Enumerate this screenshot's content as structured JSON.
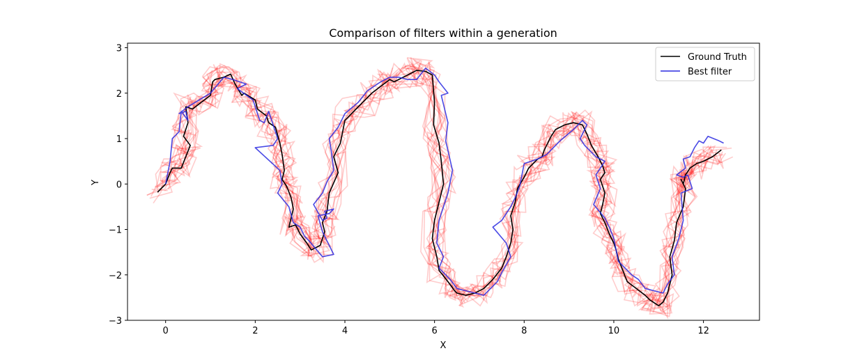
{
  "chart_data": {
    "type": "line",
    "title": "Comparison of filters within a generation",
    "xlabel": "X",
    "ylabel": "Y",
    "xlim": [
      -0.85,
      13.25
    ],
    "ylim": [
      -3.0,
      3.1
    ],
    "xticks": [
      0,
      2,
      4,
      6,
      8,
      10,
      12
    ],
    "yticks": [
      -3,
      -2,
      -1,
      0,
      1,
      2,
      3
    ],
    "xtick_labels": [
      "0",
      "2",
      "4",
      "6",
      "8",
      "10",
      "12"
    ],
    "ytick_labels": [
      "−3",
      "−2",
      "−1",
      "0",
      "1",
      "2",
      "3"
    ],
    "grid": false,
    "legend_position": "top-right",
    "legend": [
      "Ground Truth",
      "Best filter"
    ],
    "series": [
      {
        "name": "Ground Truth",
        "color": "#000000",
        "x": [
          -0.18,
          0.0,
          0.1,
          0.15,
          0.35,
          0.45,
          0.55,
          0.4,
          0.5,
          0.45,
          0.6,
          0.8,
          1.0,
          1.05,
          1.1,
          1.3,
          1.45,
          1.55,
          1.7,
          1.75,
          2.0,
          2.05,
          2.25,
          2.3,
          2.45,
          2.55,
          2.6,
          2.65,
          2.6,
          2.7,
          2.8,
          2.85,
          2.75,
          2.9,
          3.0,
          3.15,
          3.25,
          3.45,
          3.55,
          3.5,
          3.6,
          3.65,
          3.85,
          3.75,
          3.9,
          4.0,
          4.2,
          4.4,
          4.6,
          4.8,
          5.0,
          5.1,
          5.3,
          5.5,
          5.6,
          5.8,
          5.95,
          6.0,
          5.98,
          6.1,
          6.15,
          6.2,
          6.1,
          6.0,
          5.95,
          6.05,
          6.1,
          6.3,
          6.45,
          6.5,
          6.7,
          6.9,
          7.1,
          7.3,
          7.5,
          7.6,
          7.7,
          7.75,
          7.7,
          7.8,
          7.85,
          8.0,
          8.1,
          8.3,
          8.4,
          8.45,
          8.6,
          8.7,
          8.9,
          9.1,
          9.3,
          9.4,
          9.5,
          9.65,
          9.75,
          9.8,
          9.7,
          9.8,
          9.75,
          9.7,
          9.8,
          9.9,
          10.0,
          10.05,
          10.1,
          10.2,
          10.3,
          10.5,
          10.7,
          10.8,
          11.0,
          11.1,
          11.2,
          11.3,
          11.25,
          11.35,
          11.4,
          11.55,
          11.6,
          11.5,
          11.55,
          11.6,
          11.7,
          11.85,
          12.0,
          12.2,
          12.4
        ],
        "y": [
          -0.18,
          0.0,
          0.25,
          0.35,
          0.35,
          0.6,
          0.85,
          1.05,
          1.35,
          1.7,
          1.65,
          1.8,
          1.95,
          2.25,
          2.3,
          2.35,
          2.42,
          2.2,
          1.95,
          2.0,
          1.85,
          1.65,
          1.5,
          1.35,
          1.25,
          0.9,
          0.65,
          0.3,
          0.1,
          -0.05,
          -0.3,
          -0.55,
          -0.95,
          -0.9,
          -1.1,
          -1.3,
          -1.45,
          -1.35,
          -1.05,
          -0.85,
          -0.6,
          -0.2,
          0.25,
          0.6,
          0.9,
          1.4,
          1.6,
          1.8,
          2.0,
          2.15,
          2.3,
          2.25,
          2.35,
          2.45,
          2.5,
          2.48,
          2.4,
          1.8,
          1.3,
          0.9,
          0.5,
          0.0,
          -0.4,
          -0.8,
          -1.2,
          -1.6,
          -1.9,
          -2.15,
          -2.35,
          -2.4,
          -2.45,
          -2.4,
          -2.3,
          -2.1,
          -1.85,
          -1.6,
          -1.3,
          -1.0,
          -0.7,
          -0.4,
          -0.1,
          0.15,
          0.35,
          0.55,
          0.6,
          0.75,
          1.05,
          1.2,
          1.3,
          1.35,
          1.3,
          1.1,
          0.85,
          0.6,
          0.4,
          0.25,
          0.1,
          -0.2,
          -0.45,
          -0.65,
          -0.85,
          -1.1,
          -1.3,
          -1.45,
          -1.65,
          -1.9,
          -2.15,
          -2.3,
          -2.45,
          -2.55,
          -2.68,
          -2.6,
          -2.4,
          -2.0,
          -1.6,
          -1.25,
          -0.85,
          -0.5,
          -0.1,
          0.1,
          0.0,
          0.2,
          0.35,
          0.45,
          0.5,
          0.6,
          0.75
        ]
      },
      {
        "name": "Best filter",
        "color": "#2a2ae0",
        "x": [
          0.0,
          0.1,
          0.15,
          0.3,
          0.35,
          0.5,
          0.45,
          0.3,
          0.5,
          1.0,
          1.3,
          1.5,
          1.8,
          1.6,
          1.95,
          2.0,
          2.1,
          2.2,
          2.3,
          2.5,
          2.4,
          2.0,
          2.55,
          2.6,
          2.5,
          2.75,
          2.85,
          3.0,
          3.1,
          3.2,
          3.5,
          3.75,
          3.5,
          3.4,
          3.65,
          3.75,
          3.55,
          3.6,
          3.5,
          3.3,
          3.5,
          3.6,
          3.75,
          3.7,
          3.65,
          3.85,
          4.0,
          4.3,
          4.5,
          4.8,
          5.0,
          5.2,
          5.4,
          5.6,
          5.8,
          6.0,
          6.1,
          6.3,
          6.15,
          6.3,
          6.25,
          6.4,
          6.3,
          6.1,
          6.05,
          6.2,
          6.1,
          6.35,
          6.5,
          6.7,
          6.9,
          7.1,
          7.4,
          7.5,
          7.7,
          7.6,
          7.3,
          7.5,
          7.7,
          7.8,
          7.9,
          8.0,
          8.3,
          8.5,
          8.8,
          9.1,
          9.3,
          9.4,
          9.25,
          9.35,
          9.6,
          9.8,
          9.6,
          9.7,
          9.55,
          9.8,
          9.9,
          10.0,
          10.05,
          10.1,
          10.2,
          10.4,
          10.55,
          10.7,
          10.9,
          11.1,
          11.2,
          11.35,
          11.3,
          11.45,
          11.55,
          11.5,
          11.75,
          11.65,
          11.55,
          11.4,
          11.6,
          11.55,
          11.7,
          11.8,
          11.9,
          12.0,
          12.1,
          12.35,
          12.45
        ],
        "y": [
          0.0,
          0.5,
          1.0,
          1.15,
          1.6,
          1.4,
          1.6,
          1.55,
          1.7,
          2.0,
          2.35,
          2.3,
          2.2,
          2.1,
          1.85,
          1.7,
          1.4,
          1.35,
          1.6,
          1.0,
          0.85,
          0.8,
          0.3,
          0.0,
          -0.2,
          -0.5,
          -0.85,
          -0.95,
          -1.15,
          -1.25,
          -1.6,
          -1.55,
          -1.05,
          -0.7,
          -0.65,
          -0.55,
          -0.6,
          -0.75,
          -0.8,
          -0.45,
          -0.2,
          0.05,
          0.3,
          0.7,
          1.0,
          1.25,
          1.55,
          1.8,
          2.05,
          2.25,
          2.35,
          2.35,
          2.3,
          2.3,
          2.55,
          2.4,
          2.25,
          2.0,
          1.95,
          1.35,
          0.95,
          0.3,
          -0.2,
          -0.8,
          -1.3,
          -1.6,
          -1.85,
          -2.1,
          -2.3,
          -2.35,
          -2.4,
          -2.45,
          -2.15,
          -1.95,
          -1.6,
          -1.3,
          -0.95,
          -0.8,
          -0.5,
          -0.3,
          -0.05,
          0.45,
          0.55,
          0.65,
          0.95,
          1.2,
          1.4,
          1.3,
          1.0,
          0.85,
          0.6,
          0.5,
          0.2,
          -0.1,
          -0.45,
          -0.75,
          -0.95,
          -1.2,
          -1.45,
          -1.7,
          -1.8,
          -2.0,
          -2.1,
          -2.3,
          -2.35,
          -2.4,
          -2.2,
          -2.0,
          -1.6,
          -1.2,
          -0.8,
          -0.2,
          -0.1,
          0.2,
          0.15,
          0.2,
          0.35,
          0.55,
          0.6,
          0.8,
          0.95,
          0.9,
          1.05,
          0.95,
          0.9
        ]
      }
    ],
    "candidate_filters": {
      "color": "#ff0000",
      "opacity": 0.2
    }
  }
}
